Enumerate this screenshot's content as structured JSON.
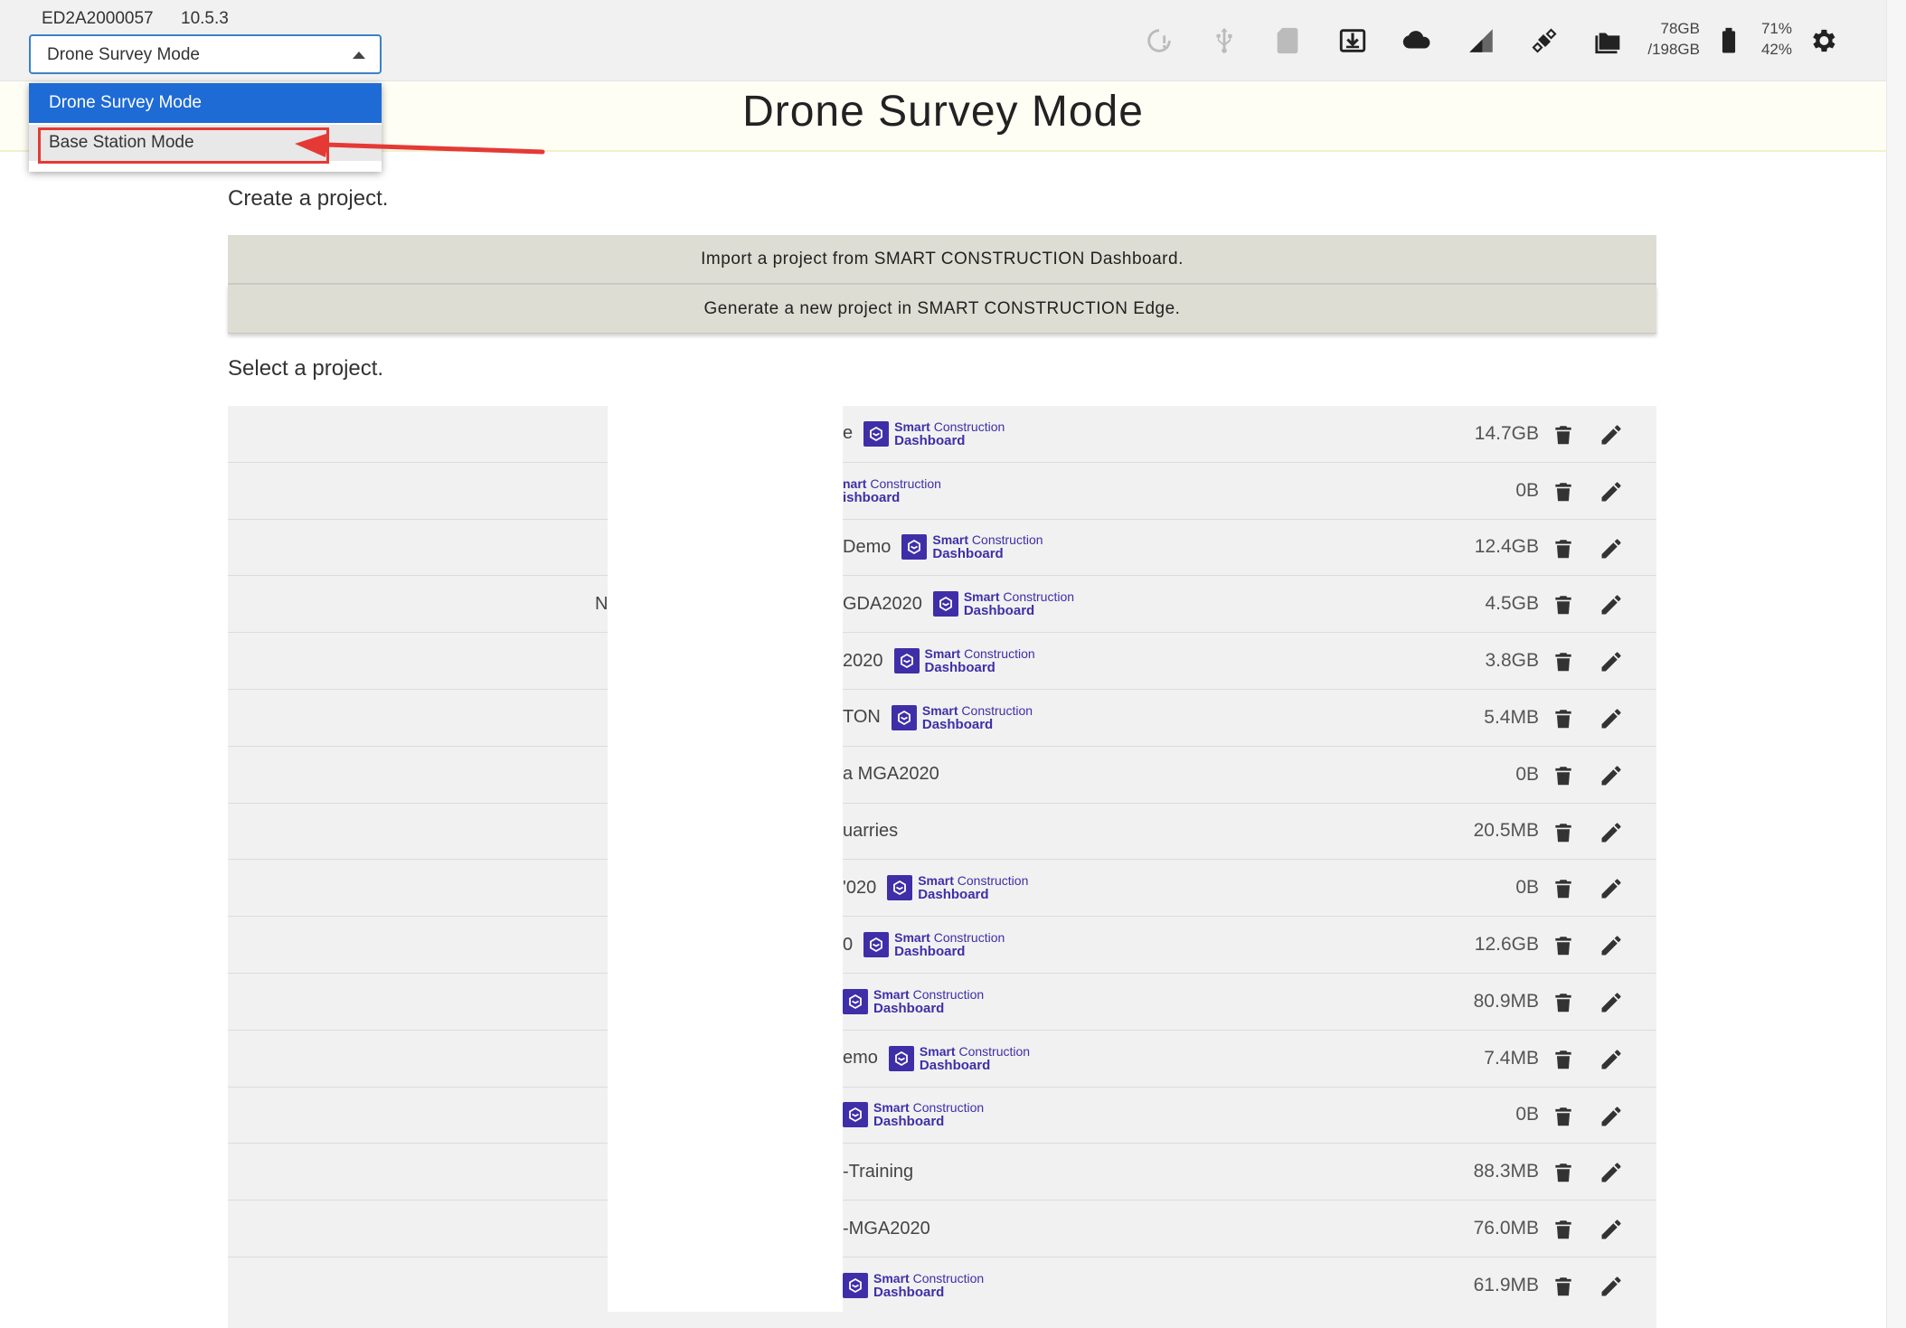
{
  "header": {
    "device_id": "ED2A2000057",
    "version": "10.5.3",
    "mode_select_value": "Drone Survey Mode",
    "storage": {
      "used": "78GB",
      "total": "/198GB"
    },
    "battery": {
      "line1": "71%",
      "line2": "42%"
    },
    "icons": [
      "sync-status-icon",
      "usb-icon",
      "sd-card-icon",
      "download-icon",
      "cloud-icon",
      "signal-icon",
      "satellite-icon",
      "folder-icon",
      "battery-icon",
      "gear-icon"
    ]
  },
  "dropdown": {
    "options": [
      "Drone Survey Mode",
      "Base Station Mode"
    ],
    "selected": "Drone Survey Mode",
    "highlighted": "Base Station Mode"
  },
  "page": {
    "title": "Drone Survey Mode",
    "create_label": "Create a project.",
    "import_button": "Import a project from SMART CONSTRUCTION Dashboard.",
    "generate_button": "Generate a new project in SMART CONSTRUCTION Edge.",
    "select_label": "Select a project."
  },
  "badge": {
    "line1_bold": "Smart",
    "line1_rest": " Construction",
    "line2": "Dashboard"
  },
  "projects": [
    {
      "name": "e",
      "size": "14.7GB",
      "badge": true
    },
    {
      "name": "",
      "size": "0B",
      "badge": true,
      "badge_partial": "nart Construction|ishboard"
    },
    {
      "name": "Demo",
      "size": "12.4GB",
      "badge": true
    },
    {
      "name": "GDA2020",
      "size": "4.5GB",
      "badge": true,
      "stray": "N"
    },
    {
      "name": "2020",
      "size": "3.8GB",
      "badge": true
    },
    {
      "name": "TON",
      "size": "5.4MB",
      "badge": true
    },
    {
      "name": "a MGA2020",
      "size": "0B",
      "badge": false
    },
    {
      "name": "uarries",
      "size": "20.5MB",
      "badge": false
    },
    {
      "name": "'020",
      "size": "0B",
      "badge": true
    },
    {
      "name": "0",
      "size": "12.6GB",
      "badge": true
    },
    {
      "name": "",
      "size": "80.9MB",
      "badge": true
    },
    {
      "name": "emo",
      "size": "7.4MB",
      "badge": true
    },
    {
      "name": "",
      "size": "0B",
      "badge": true
    },
    {
      "name": "-Training",
      "size": "88.3MB",
      "badge": false
    },
    {
      "name": "-MGA2020",
      "size": "76.0MB",
      "badge": false
    },
    {
      "name": "",
      "size": "61.9MB",
      "badge": true
    }
  ],
  "colors": {
    "accent": "#1e6bd6",
    "badge": "#3e2fa8",
    "button_bg": "#ddddd3",
    "highlight": "#e53935"
  }
}
